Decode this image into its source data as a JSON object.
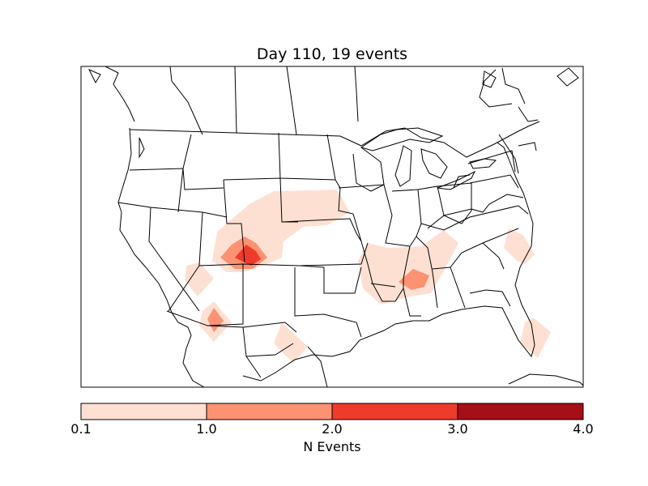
{
  "title": "Day 110, 19 events",
  "colorbar": {
    "label": "N Events",
    "ticks": [
      "0.1",
      "1.0",
      "2.0",
      "3.0",
      "4.0"
    ],
    "bins": [
      {
        "min": 0.1,
        "max": 1.0,
        "color": "#fee0d2"
      },
      {
        "min": 1.0,
        "max": 2.0,
        "color": "#fc9272"
      },
      {
        "min": 2.0,
        "max": 3.0,
        "color": "#ef3b2c"
      },
      {
        "min": 3.0,
        "max": 4.0,
        "color": "#a50f15"
      }
    ]
  },
  "colors": {
    "level1": "#fee0d2",
    "level2": "#fc9272",
    "level3": "#ef3b2c",
    "outline": "#000000"
  }
}
